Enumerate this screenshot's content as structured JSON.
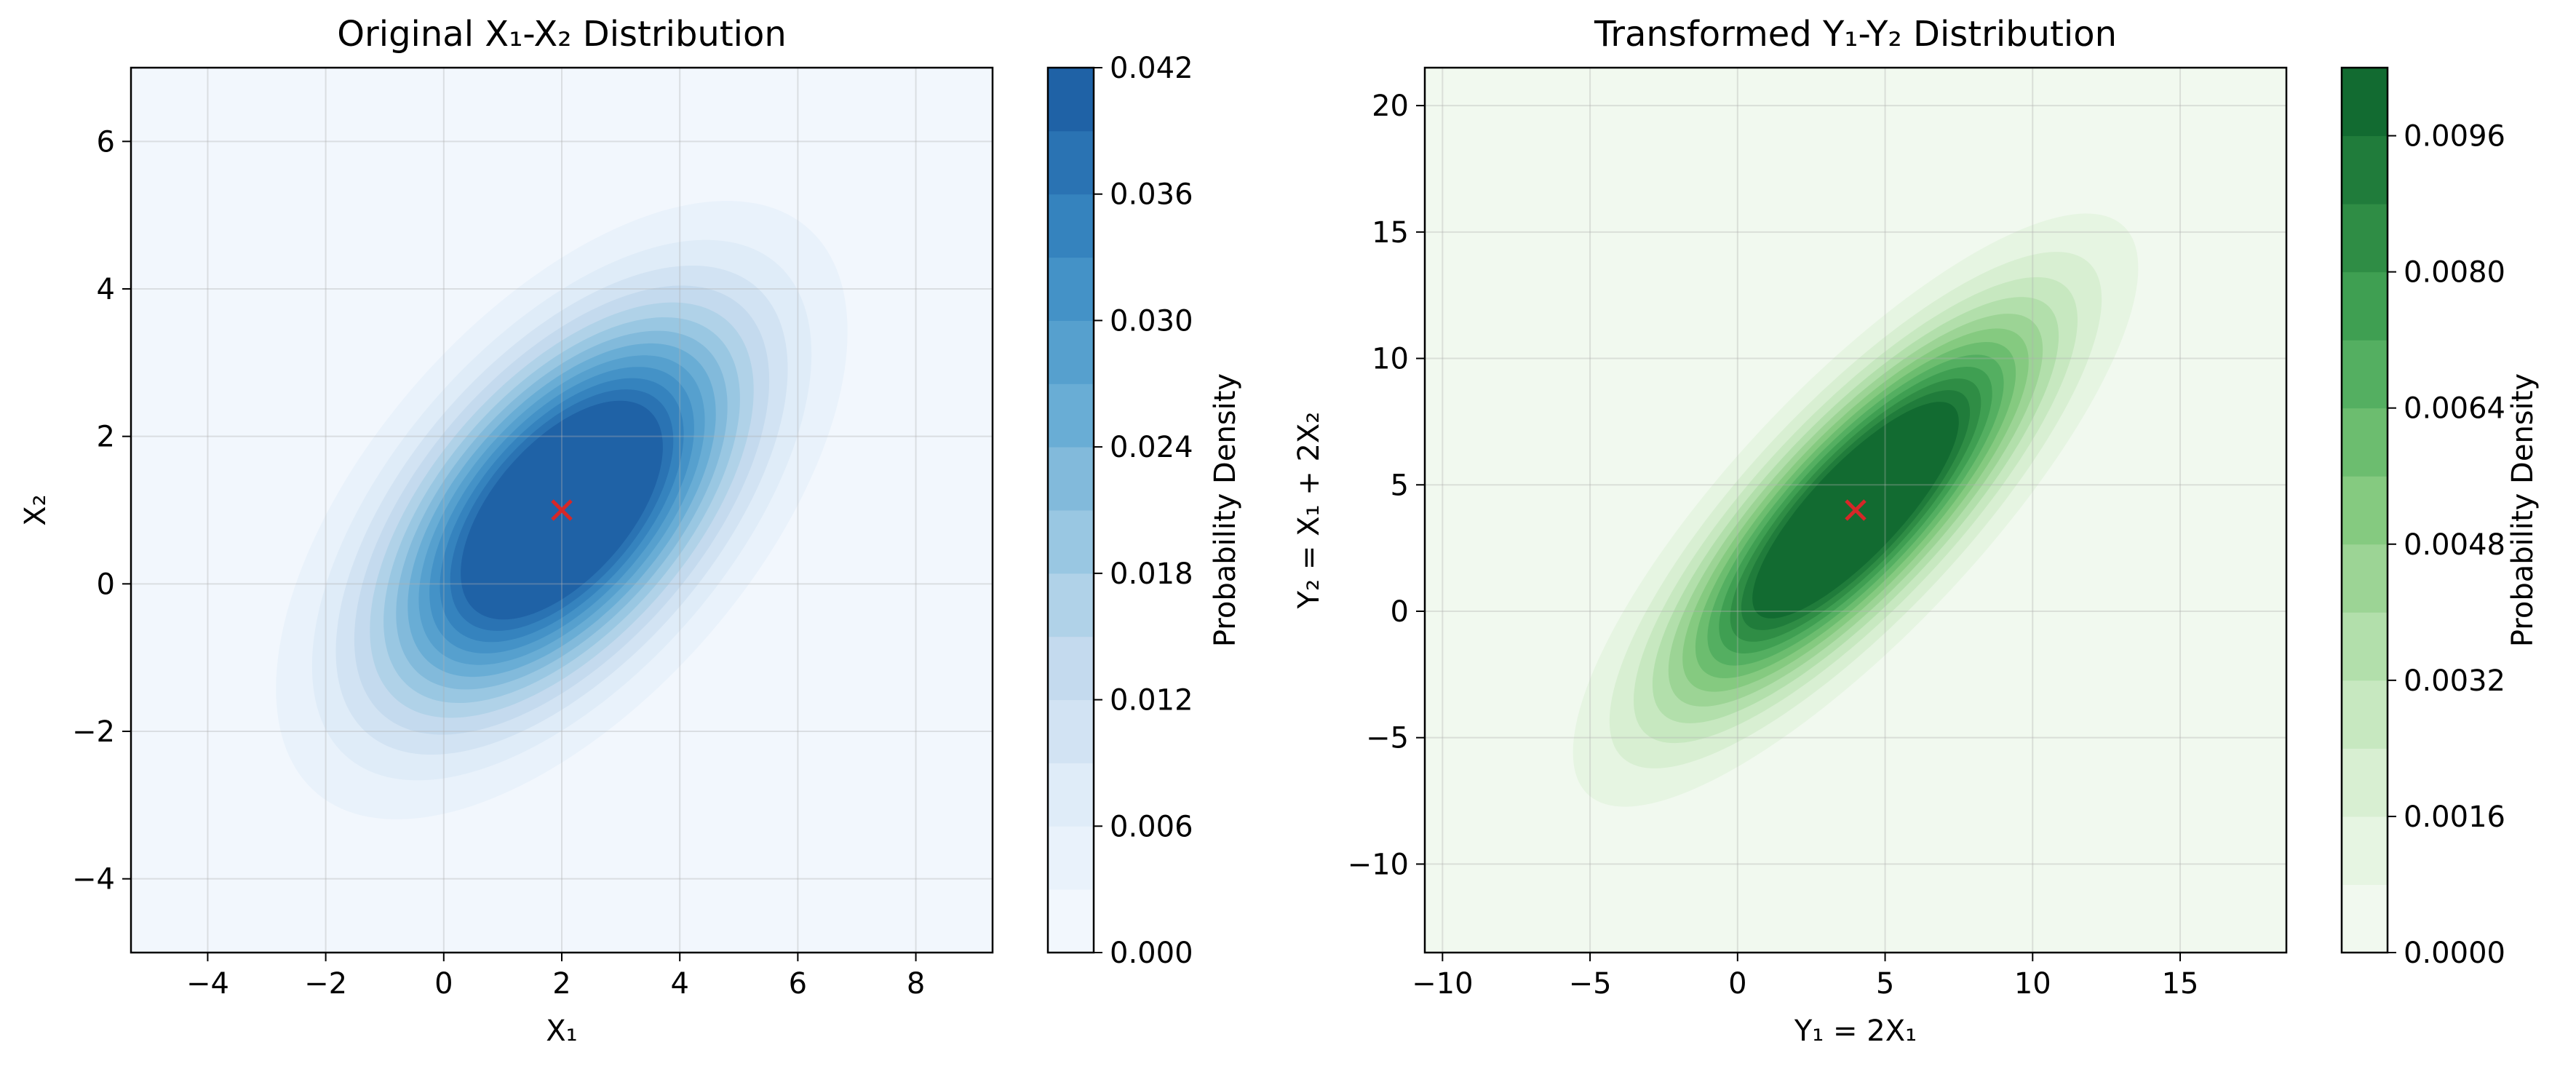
{
  "chart_data": [
    {
      "type": "contour",
      "title": "Original X₁-X₂ Distribution",
      "xlabel": "X₁",
      "ylabel": "X₂",
      "xlim": [
        -5.3,
        9.3
      ],
      "ylim": [
        -5,
        7
      ],
      "xticks": [
        -4,
        -2,
        0,
        2,
        4,
        6,
        8
      ],
      "xtick_labels": [
        "−4",
        "−2",
        "0",
        "2",
        "4",
        "6",
        "8"
      ],
      "yticks": [
        -4,
        -2,
        0,
        2,
        4,
        6
      ],
      "ytick_labels": [
        "−4",
        "−2",
        "0",
        "2",
        "4",
        "6"
      ],
      "grid": true,
      "mean": [
        2,
        1
      ],
      "mean_marker": "x",
      "mean_marker_color": "#d62728",
      "distribution": {
        "mean": [
          2,
          1
        ],
        "cov": [
          [
            4,
            2
          ],
          [
            2,
            3
          ]
        ]
      },
      "colormap": "Blues",
      "levels": [
        0,
        0.003,
        0.006,
        0.009,
        0.012,
        0.015,
        0.018,
        0.021,
        0.024,
        0.027,
        0.03,
        0.033,
        0.036,
        0.039,
        0.042
      ],
      "level_colors": [
        "#f2f7fd",
        "#e9f2fb",
        "#dfecf8",
        "#d2e3f3",
        "#c4daee",
        "#b0d2e8",
        "#99c7e2",
        "#82badb",
        "#69add5",
        "#56a0ce",
        "#4492c7",
        "#3583be",
        "#2a73b3",
        "#1f62a6",
        "#1a539a"
      ],
      "colorbar_ticks": [
        0,
        0.006,
        0.012,
        0.018,
        0.024,
        0.03,
        0.036,
        0.042
      ],
      "colorbar_tick_labels": [
        "0.000",
        "0.006",
        "0.012",
        "0.018",
        "0.024",
        "0.030",
        "0.036",
        "0.042"
      ],
      "colorbar_label": "Probability Density"
    },
    {
      "type": "contour",
      "title": "Transformed Y₁-Y₂ Distribution",
      "xlabel": "Y₁ = 2X₁",
      "ylabel": "Y₂ = X₁ + 2X₂",
      "xlim": [
        -10.6,
        18.6
      ],
      "ylim": [
        -13.5,
        21.5
      ],
      "xticks": [
        -10,
        -5,
        0,
        5,
        10,
        15
      ],
      "xtick_labels": [
        "−10",
        "−5",
        "0",
        "5",
        "10",
        "15"
      ],
      "yticks": [
        -10,
        -5,
        0,
        5,
        10,
        15,
        20
      ],
      "ytick_labels": [
        "−10",
        "−5",
        "0",
        "5",
        "10",
        "15",
        "20"
      ],
      "grid": true,
      "mean": [
        4,
        4
      ],
      "mean_marker": "x",
      "mean_marker_color": "#d62728",
      "distribution": {
        "mean": [
          4,
          4
        ],
        "cov": [
          [
            16,
            16
          ],
          [
            16,
            24
          ]
        ]
      },
      "colormap": "Greens",
      "levels": [
        0,
        0.0008,
        0.0016,
        0.0024,
        0.0032,
        0.004,
        0.0048,
        0.0056,
        0.0064,
        0.0072,
        0.008,
        0.0088,
        0.0096,
        0.0104
      ],
      "level_colors": [
        "#f1f9ef",
        "#e6f5e2",
        "#d8efd2",
        "#c7e8c0",
        "#b2dfab",
        "#9cd495",
        "#85ca80",
        "#6cbd6f",
        "#54af61",
        "#3f9f52",
        "#2f8d45",
        "#207c3b",
        "#126b31",
        "#0b5c2a"
      ],
      "colorbar_ticks": [
        0,
        0.0016,
        0.0032,
        0.0048,
        0.0064,
        0.008,
        0.0096
      ],
      "colorbar_tick_labels": [
        "0.0000",
        "0.0016",
        "0.0032",
        "0.0048",
        "0.0064",
        "0.0080",
        "0.0096"
      ],
      "colorbar_label": "Probability Density"
    }
  ]
}
